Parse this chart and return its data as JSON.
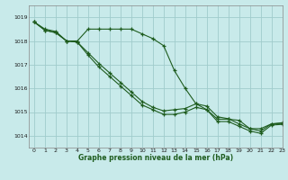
{
  "title": "Graphe pression niveau de la mer (hPa)",
  "background_color": "#c8eaea",
  "grid_color": "#a0cccc",
  "line_color": "#1e5c1e",
  "xlim": [
    -0.5,
    23
  ],
  "ylim": [
    1013.5,
    1019.5
  ],
  "yticks": [
    1014,
    1015,
    1016,
    1017,
    1018,
    1019
  ],
  "xticks": [
    0,
    1,
    2,
    3,
    4,
    5,
    6,
    7,
    8,
    9,
    10,
    11,
    12,
    13,
    14,
    15,
    16,
    17,
    18,
    19,
    20,
    21,
    22,
    23
  ],
  "series": [
    [
      1018.8,
      1018.5,
      1018.4,
      1018.0,
      1018.0,
      1018.5,
      1018.5,
      1018.5,
      1018.5,
      1018.5,
      1018.3,
      1018.1,
      1017.8,
      1016.75,
      1016.0,
      1015.35,
      1015.1,
      1014.7,
      1014.7,
      1014.65,
      1014.3,
      1014.3,
      1014.5,
      1014.55
    ],
    [
      1018.8,
      1018.45,
      1018.35,
      1018.0,
      1017.95,
      1017.5,
      1017.05,
      1016.65,
      1016.25,
      1015.85,
      1015.45,
      1015.2,
      1015.05,
      1015.1,
      1015.15,
      1015.35,
      1015.25,
      1014.8,
      1014.72,
      1014.5,
      1014.3,
      1014.2,
      1014.5,
      1014.52
    ],
    [
      1018.8,
      1018.45,
      1018.35,
      1018.0,
      1017.95,
      1017.4,
      1016.9,
      1016.5,
      1016.1,
      1015.7,
      1015.3,
      1015.1,
      1014.9,
      1014.9,
      1015.0,
      1015.2,
      1015.1,
      1014.6,
      1014.6,
      1014.4,
      1014.2,
      1014.1,
      1014.45,
      1014.48
    ]
  ]
}
